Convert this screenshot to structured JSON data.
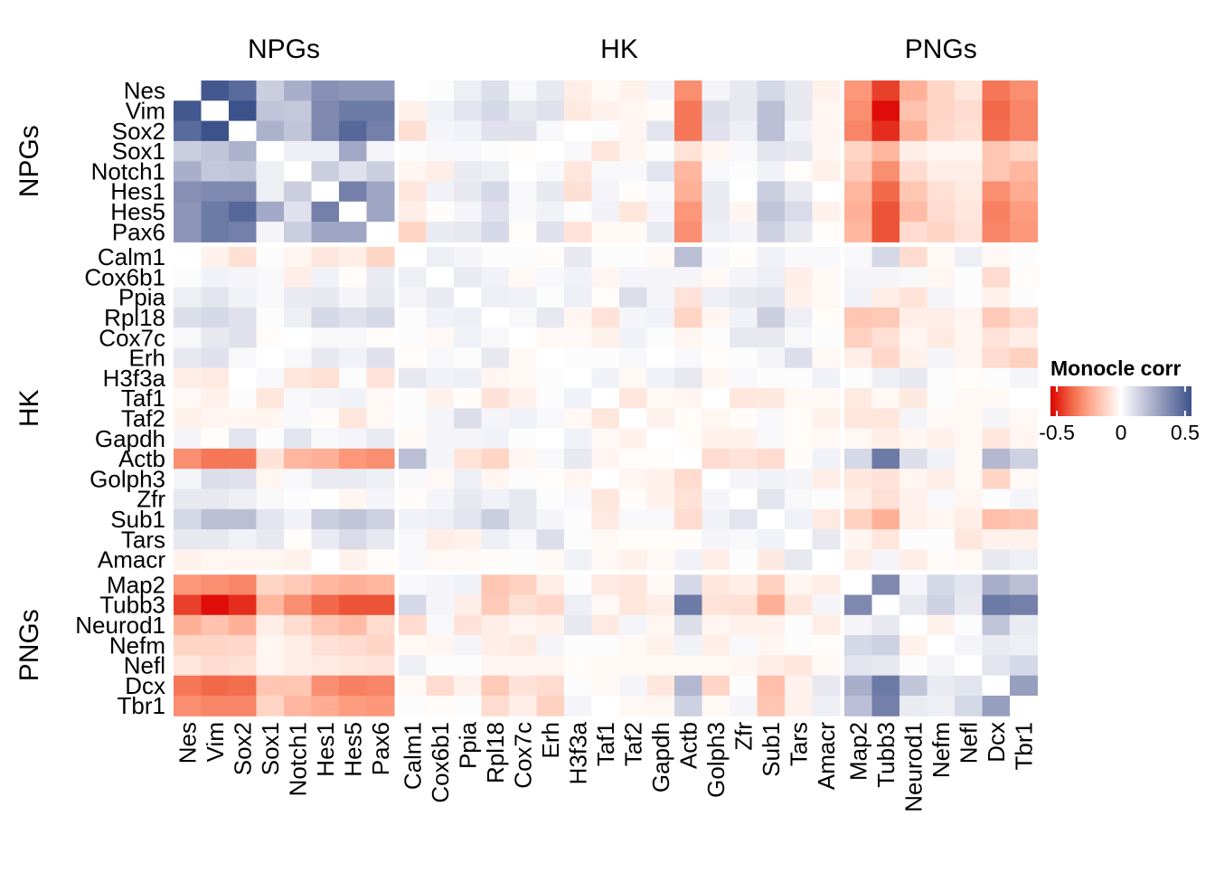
{
  "chart_data": {
    "type": "heatmap",
    "title": "",
    "genes": [
      "Nes",
      "Vim",
      "Sox2",
      "Sox1",
      "Notch1",
      "Hes1",
      "Hes5",
      "Pax6",
      "Calm1",
      "Cox6b1",
      "Ppia",
      "Rpl18",
      "Cox7c",
      "Erh",
      "H3f3a",
      "Taf1",
      "Taf2",
      "Gapdh",
      "Actb",
      "Golph3",
      "Zfr",
      "Sub1",
      "Tars",
      "Amacr",
      "Map2",
      "Tubb3",
      "Neurod1",
      "Nefm",
      "Nefl",
      "Dcx",
      "Tbr1"
    ],
    "groups": [
      {
        "name": "NPGs",
        "size": 8
      },
      {
        "name": "HK",
        "size": 16
      },
      {
        "name": "PNGs",
        "size": 7
      }
    ],
    "legend": {
      "title": "Monocle corr",
      "ticks": [
        -0.5,
        0,
        0.5
      ],
      "tick_labels": [
        "-0.5",
        "0",
        "0.5"
      ],
      "range": [
        -0.55,
        0.55
      ],
      "low_color": "#dc0000",
      "mid_color": "#ffffff",
      "high_color": "#3b528b",
      "placement": "right"
    },
    "values": [
      [
        0,
        0.53,
        0.47,
        0.15,
        0.25,
        0.35,
        0.33,
        0.33,
        0,
        0.01,
        0.05,
        0.1,
        0.02,
        0.07,
        -0.05,
        -0.02,
        -0.04,
        0.03,
        -0.3,
        0.03,
        0.07,
        0.12,
        0.07,
        -0.04,
        -0.28,
        -0.45,
        -0.22,
        -0.12,
        -0.07,
        -0.35,
        -0.3
      ],
      [
        0.53,
        0,
        0.55,
        0.18,
        0.17,
        0.37,
        0.42,
        0.42,
        -0.04,
        0.04,
        0.08,
        0.12,
        0.07,
        0.09,
        -0.06,
        -0.04,
        -0.03,
        -0.01,
        -0.35,
        0.1,
        0.07,
        0.2,
        0.07,
        -0.03,
        -0.3,
        -0.53,
        -0.17,
        -0.12,
        -0.1,
        -0.38,
        -0.32
      ],
      [
        0.47,
        0.55,
        0,
        0.24,
        0.18,
        0.37,
        0.48,
        0.4,
        -0.09,
        0.03,
        0.04,
        0.09,
        0.09,
        0.02,
        0,
        0.01,
        -0.03,
        0.08,
        -0.35,
        0.09,
        0.05,
        0.2,
        0.04,
        -0.03,
        -0.32,
        -0.48,
        -0.22,
        -0.11,
        -0.09,
        -0.37,
        -0.32
      ],
      [
        0.15,
        0.18,
        0.24,
        0,
        0.05,
        0.05,
        0.27,
        0.03,
        0.01,
        0.02,
        0.02,
        0.01,
        -0.01,
        0,
        0.02,
        -0.07,
        -0.03,
        0.01,
        -0.08,
        -0.03,
        0.02,
        0.08,
        0.07,
        -0.03,
        -0.12,
        -0.2,
        -0.05,
        -0.03,
        -0.03,
        -0.16,
        -0.12
      ],
      [
        0.25,
        0.17,
        0.18,
        0.05,
        0,
        0.15,
        0.09,
        0.15,
        -0.03,
        -0.05,
        0.06,
        0.05,
        0,
        0.02,
        -0.07,
        0.02,
        0.02,
        0.08,
        -0.2,
        0.02,
        0.01,
        0.04,
        -0.01,
        -0.04,
        -0.15,
        -0.3,
        -0.1,
        -0.05,
        -0.05,
        -0.16,
        -0.2
      ],
      [
        0.35,
        0.37,
        0.37,
        0.05,
        0.15,
        0,
        0.4,
        0.28,
        -0.07,
        0.04,
        0.07,
        0.12,
        0.02,
        0.07,
        -0.09,
        0.03,
        -0.01,
        0.02,
        -0.22,
        0.06,
        0,
        0.15,
        0.06,
        0,
        -0.2,
        -0.38,
        -0.16,
        -0.09,
        -0.06,
        -0.3,
        -0.23
      ],
      [
        0.33,
        0.42,
        0.48,
        0.27,
        0.09,
        0.4,
        0,
        0.28,
        -0.05,
        -0.01,
        0.03,
        0.09,
        0.02,
        0.04,
        0.01,
        0.04,
        -0.07,
        0.03,
        -0.28,
        0.06,
        -0.03,
        0.18,
        0.11,
        -0.04,
        -0.22,
        -0.42,
        -0.19,
        -0.1,
        -0.07,
        -0.33,
        -0.27
      ],
      [
        0.33,
        0.42,
        0.4,
        0.03,
        0.15,
        0.28,
        0.28,
        0,
        -0.12,
        0.06,
        0.07,
        0.12,
        -0.01,
        0.09,
        -0.08,
        -0.02,
        -0.02,
        0.06,
        -0.3,
        0.05,
        0.03,
        0.14,
        0.07,
        -0.01,
        -0.2,
        -0.42,
        -0.1,
        -0.12,
        -0.08,
        -0.32,
        -0.28
      ],
      [
        0,
        -0.04,
        -0.09,
        0.01,
        -0.03,
        -0.07,
        -0.05,
        -0.12,
        0,
        0.05,
        0.03,
        0.01,
        0.01,
        -0.01,
        0.07,
        0.01,
        0.01,
        -0.02,
        0.2,
        0.02,
        -0.01,
        0.04,
        0.02,
        0.02,
        0.02,
        0.12,
        -0.1,
        -0.02,
        0.05,
        -0.02,
        0.01
      ],
      [
        0.01,
        0.04,
        0.03,
        0.02,
        -0.05,
        0.04,
        -0.01,
        0.06,
        0.05,
        0,
        0.06,
        0.04,
        -0.02,
        0.02,
        0.04,
        -0.03,
        0.03,
        0.03,
        0.03,
        -0.02,
        0.03,
        0.05,
        -0.05,
        -0.02,
        0.03,
        0.03,
        0.02,
        -0.03,
        0.01,
        -0.1,
        -0.01
      ],
      [
        0.05,
        0.08,
        0.04,
        0.02,
        0.06,
        0.07,
        0.03,
        0.07,
        0.03,
        0.06,
        0,
        0.05,
        0.04,
        0.01,
        0.05,
        -0.01,
        0.1,
        0.03,
        -0.08,
        0.05,
        0.07,
        0.08,
        -0.04,
        -0.02,
        0.04,
        -0.05,
        -0.08,
        0.03,
        0.01,
        -0.04,
        0.01
      ],
      [
        0.1,
        0.12,
        0.09,
        0.01,
        0.05,
        0.12,
        0.09,
        0.12,
        0.01,
        0.04,
        0.05,
        0,
        0.02,
        0.07,
        -0.03,
        -0.08,
        0.03,
        0.04,
        -0.12,
        -0.03,
        0.04,
        0.15,
        0.05,
        -0.01,
        -0.16,
        -0.15,
        -0.05,
        -0.05,
        -0.03,
        -0.15,
        -0.1
      ],
      [
        0.02,
        0.07,
        0.09,
        -0.01,
        0,
        0.02,
        0.02,
        -0.01,
        0.01,
        -0.02,
        0.04,
        0.02,
        0,
        -0.02,
        -0.02,
        -0.04,
        0.04,
        0.01,
        -0.03,
        0.01,
        0.07,
        0.07,
        0.02,
        0.01,
        -0.13,
        -0.09,
        -0.03,
        -0.06,
        -0.03,
        -0.08,
        -0.05
      ],
      [
        0.07,
        0.09,
        0.02,
        0,
        0.02,
        0.07,
        0.04,
        0.09,
        -0.01,
        0.02,
        0.01,
        0.07,
        -0.02,
        0,
        0.01,
        0.01,
        0.02,
        0,
        0.02,
        -0.01,
        0.01,
        0.03,
        0.1,
        -0.02,
        -0.05,
        -0.11,
        -0.04,
        0.03,
        -0.03,
        -0.1,
        -0.13
      ],
      [
        -0.05,
        -0.06,
        0,
        0.02,
        -0.07,
        -0.09,
        0.01,
        -0.08,
        0.07,
        0.04,
        0.05,
        -0.03,
        -0.02,
        0.01,
        0,
        0.04,
        -0.02,
        0.04,
        0.07,
        -0.03,
        0.02,
        0.01,
        0.01,
        0.04,
        0.01,
        0.05,
        0.07,
        0.01,
        -0.01,
        0.01,
        0.03
      ],
      [
        -0.02,
        -0.04,
        0.01,
        -0.07,
        0.02,
        0.03,
        0.04,
        -0.02,
        0.01,
        -0.04,
        -0.01,
        -0.08,
        -0.04,
        0.01,
        0.04,
        0,
        -0.07,
        -0.02,
        -0.03,
        0,
        -0.07,
        -0.06,
        -0.02,
        -0.02,
        -0.06,
        -0.02,
        -0.06,
        0.01,
        -0.02,
        -0.02,
        0
      ],
      [
        -0.04,
        -0.03,
        -0.03,
        -0.03,
        0.02,
        -0.01,
        -0.07,
        -0.02,
        0.01,
        0.03,
        0.1,
        0.03,
        0.04,
        0.02,
        -0.02,
        -0.07,
        0,
        -0.04,
        -0.01,
        -0.03,
        -0.01,
        0.02,
        -0.01,
        -0.04,
        -0.07,
        -0.07,
        0.03,
        -0.02,
        -0.02,
        0.03,
        -0.02
      ],
      [
        0.03,
        -0.01,
        0.08,
        0.01,
        0.08,
        0.02,
        0.03,
        0.06,
        -0.02,
        0.03,
        0.03,
        0.04,
        0.01,
        0,
        0.04,
        -0.02,
        -0.04,
        0,
        -0.01,
        -0.04,
        -0.04,
        0.02,
        -0.01,
        -0.02,
        -0.02,
        -0.05,
        -0.03,
        -0.04,
        -0.02,
        -0.07,
        -0.03
      ],
      [
        -0.3,
        -0.35,
        -0.35,
        -0.08,
        -0.2,
        -0.22,
        -0.28,
        -0.3,
        0.2,
        0.03,
        -0.08,
        -0.12,
        -0.03,
        0.02,
        0.07,
        -0.03,
        -0.01,
        -0.01,
        0,
        -0.1,
        -0.08,
        -0.1,
        -0.01,
        0.04,
        0.12,
        0.42,
        0.1,
        0.04,
        -0.02,
        0.22,
        0.14
      ],
      [
        0.03,
        0.1,
        0.09,
        -0.03,
        0.02,
        0.06,
        0.06,
        0.05,
        0.02,
        -0.02,
        0.05,
        -0.03,
        0.01,
        -0.01,
        -0.03,
        0,
        -0.03,
        -0.04,
        -0.1,
        0,
        0.03,
        0.04,
        0.03,
        -0.05,
        -0.07,
        -0.08,
        -0.03,
        -0.05,
        -0.02,
        -0.12,
        -0.02
      ],
      [
        0.07,
        0.07,
        0.05,
        0.02,
        0.01,
        0,
        -0.03,
        0.03,
        -0.01,
        0.03,
        0.07,
        0.04,
        0.07,
        0.01,
        0.02,
        -0.07,
        -0.01,
        -0.04,
        -0.08,
        0.03,
        0,
        0.08,
        0.02,
        0.01,
        -0.05,
        -0.09,
        -0.04,
        0.02,
        -0.03,
        0.01,
        0.03
      ],
      [
        0.12,
        0.2,
        0.2,
        0.08,
        0.04,
        0.15,
        0.18,
        0.14,
        0.04,
        0.05,
        0.08,
        0.15,
        0.07,
        0.03,
        0.01,
        -0.06,
        0.02,
        0.02,
        -0.1,
        0.04,
        0.08,
        0,
        0.04,
        -0.06,
        -0.13,
        -0.22,
        -0.04,
        -0.03,
        -0.05,
        -0.18,
        -0.16
      ],
      [
        0.07,
        0.07,
        0.04,
        0.07,
        -0.01,
        0.06,
        0.11,
        0.07,
        0.02,
        -0.05,
        -0.04,
        0.05,
        0.02,
        0.1,
        0.01,
        -0.02,
        -0.01,
        -0.01,
        -0.01,
        0.03,
        0.02,
        0.04,
        0,
        0.07,
        -0.03,
        -0.07,
        0.01,
        0.01,
        -0.07,
        -0.04,
        -0.04
      ],
      [
        -0.04,
        -0.03,
        -0.03,
        -0.03,
        -0.04,
        0,
        -0.04,
        -0.01,
        0.02,
        -0.02,
        -0.02,
        -0.01,
        0.01,
        -0.02,
        0.04,
        -0.02,
        -0.04,
        -0.02,
        0.04,
        -0.05,
        0.01,
        -0.06,
        0.07,
        0,
        -0.05,
        0.03,
        -0.05,
        -0.01,
        -0.02,
        0.07,
        0.05
      ],
      [
        -0.28,
        -0.3,
        -0.32,
        -0.12,
        -0.15,
        -0.2,
        -0.22,
        -0.2,
        0.02,
        0.03,
        0.04,
        -0.16,
        -0.13,
        -0.05,
        0.01,
        -0.06,
        -0.07,
        -0.02,
        0.12,
        -0.07,
        -0.05,
        -0.13,
        -0.03,
        -0.05,
        0,
        0.37,
        0.03,
        0.12,
        0.08,
        0.25,
        0.2
      ],
      [
        -0.45,
        -0.53,
        -0.48,
        -0.2,
        -0.3,
        -0.38,
        -0.42,
        -0.42,
        0.12,
        0.03,
        -0.05,
        -0.15,
        -0.09,
        -0.11,
        0.05,
        -0.02,
        -0.07,
        -0.05,
        0.42,
        -0.08,
        -0.09,
        -0.22,
        -0.07,
        0.03,
        0.37,
        0,
        0.07,
        0.14,
        0.07,
        0.42,
        0.4
      ],
      [
        -0.22,
        -0.17,
        -0.22,
        -0.05,
        -0.1,
        -0.16,
        -0.19,
        -0.1,
        -0.1,
        0.02,
        -0.08,
        -0.05,
        -0.03,
        -0.04,
        0.07,
        -0.06,
        0.03,
        -0.03,
        0.1,
        -0.03,
        -0.04,
        -0.04,
        0.01,
        -0.05,
        0.03,
        0.07,
        0,
        -0.04,
        0.01,
        0.18,
        0.06
      ],
      [
        -0.12,
        -0.12,
        -0.11,
        -0.03,
        -0.05,
        -0.09,
        -0.1,
        -0.12,
        -0.02,
        -0.03,
        0.03,
        -0.05,
        -0.06,
        0.03,
        0.01,
        0.01,
        -0.02,
        -0.04,
        0.04,
        -0.05,
        0.02,
        -0.03,
        0.01,
        -0.01,
        0.12,
        0.14,
        -0.04,
        0,
        0.03,
        0.06,
        0.05
      ],
      [
        -0.07,
        -0.1,
        -0.09,
        -0.03,
        -0.05,
        -0.06,
        -0.07,
        -0.08,
        0.05,
        0.01,
        0.01,
        -0.03,
        -0.03,
        -0.03,
        -0.01,
        -0.02,
        -0.02,
        -0.02,
        -0.02,
        -0.02,
        -0.03,
        -0.05,
        -0.07,
        -0.02,
        0.08,
        0.07,
        0.01,
        0.03,
        0,
        0.08,
        0.12
      ],
      [
        -0.35,
        -0.38,
        -0.37,
        -0.16,
        -0.16,
        -0.3,
        -0.33,
        -0.32,
        -0.02,
        -0.1,
        -0.04,
        -0.15,
        -0.08,
        -0.1,
        0.01,
        -0.02,
        0.03,
        -0.07,
        0.22,
        -0.12,
        0.01,
        -0.18,
        -0.04,
        0.07,
        0.25,
        0.42,
        0.18,
        0.06,
        0.08,
        0,
        0.3
      ],
      [
        -0.3,
        -0.32,
        -0.32,
        -0.12,
        -0.2,
        -0.23,
        -0.27,
        -0.28,
        0.01,
        -0.01,
        0.01,
        -0.1,
        -0.05,
        -0.13,
        0.03,
        0,
        -0.02,
        -0.03,
        0.14,
        -0.02,
        0.03,
        -0.16,
        -0.04,
        0.05,
        0.2,
        0.4,
        0.06,
        0.05,
        0.12,
        0.3,
        0
      ]
    ]
  }
}
